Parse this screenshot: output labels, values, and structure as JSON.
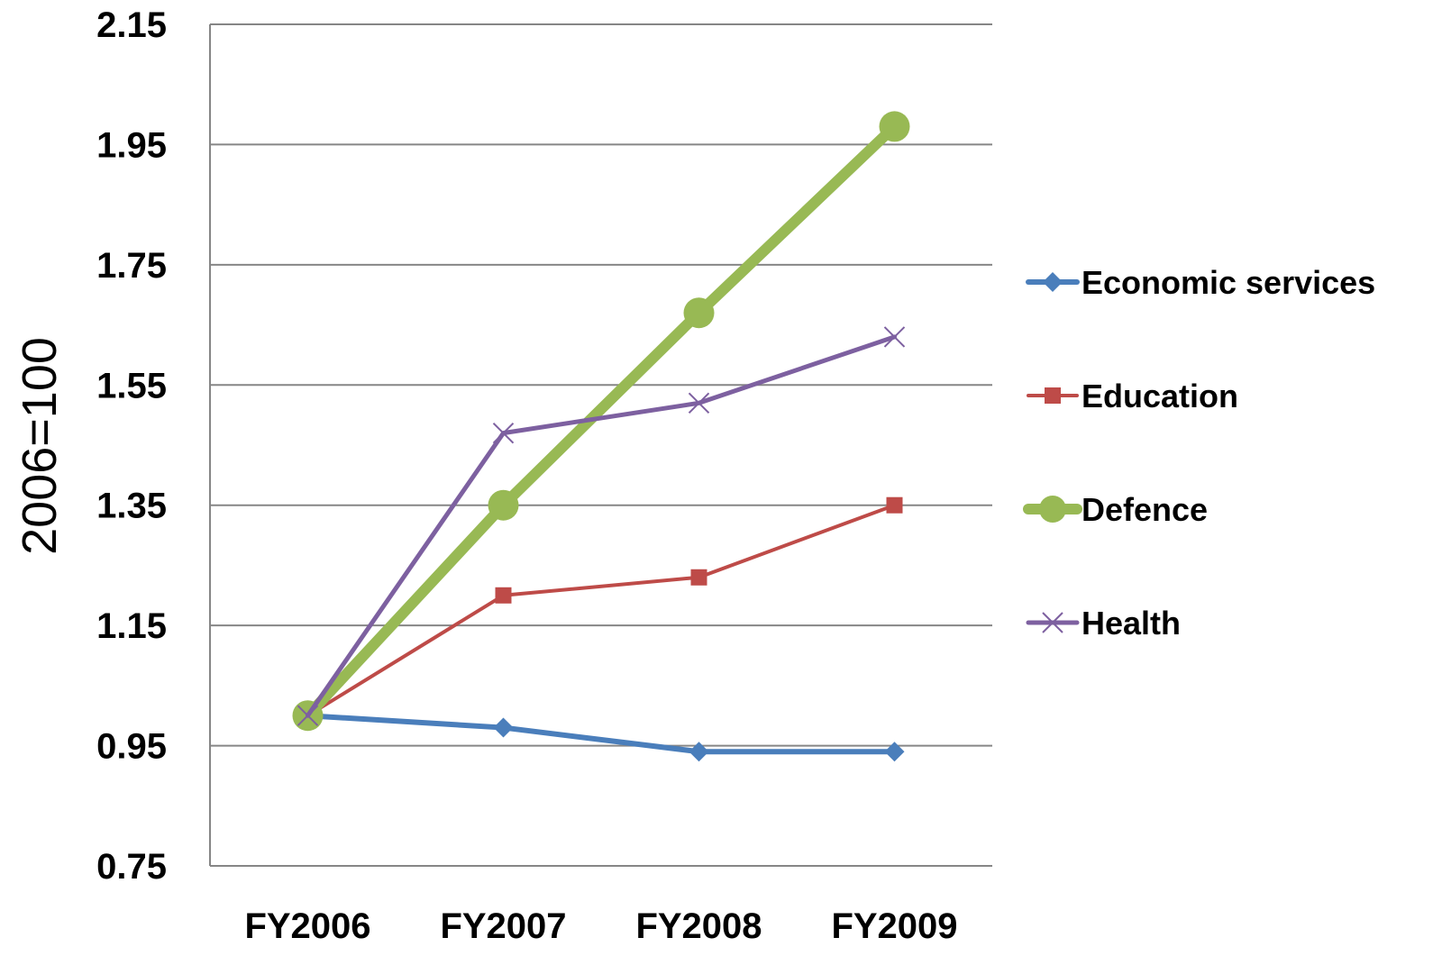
{
  "chart_data": {
    "type": "line",
    "title": "",
    "xlabel": "",
    "ylabel": "2006=100",
    "categories": [
      "FY2006",
      "FY2007",
      "FY2008",
      "FY2009"
    ],
    "yticks": [
      "2.15",
      "1.95",
      "1.75",
      "1.55",
      "1.35",
      "1.15",
      "0.95",
      "0.75"
    ],
    "ylim": [
      0.75,
      2.15
    ],
    "grid": true,
    "legend_position": "right",
    "series": [
      {
        "name": "Economic services",
        "values": [
          1.0,
          0.98,
          0.94,
          0.94
        ],
        "color": "#4a7ebb",
        "marker": "diamond"
      },
      {
        "name": "Education",
        "values": [
          1.0,
          1.2,
          1.23,
          1.35
        ],
        "color": "#be4b48",
        "marker": "square"
      },
      {
        "name": "Defence",
        "values": [
          1.0,
          1.35,
          1.67,
          1.98
        ],
        "color": "#98b954",
        "marker": "circle"
      },
      {
        "name": "Health",
        "values": [
          1.0,
          1.47,
          1.52,
          1.63
        ],
        "color": "#7d60a0",
        "marker": "x"
      }
    ]
  }
}
